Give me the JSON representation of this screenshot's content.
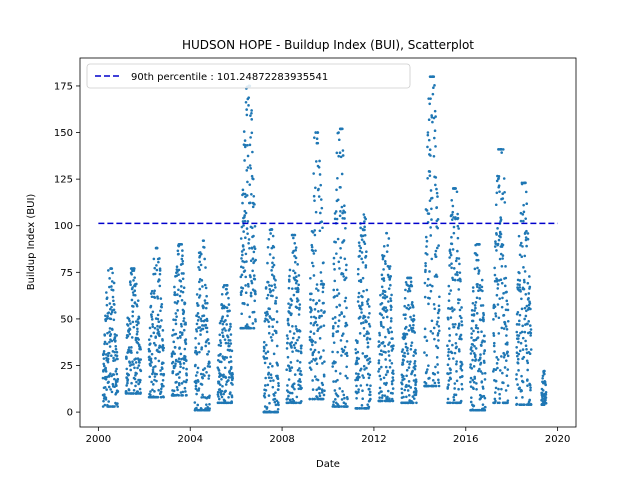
{
  "chart_data": {
    "type": "scatter",
    "title": "HUDSON HOPE - Buildup Index (BUI), Scatterplot",
    "xlabel": "Date",
    "ylabel": "Buildup Index (BUI)",
    "xlim": [
      1999.2,
      2020.8
    ],
    "ylim": [
      -8,
      190
    ],
    "xticks": [
      2000,
      2004,
      2008,
      2012,
      2016,
      2020
    ],
    "xtick_labels": [
      "2000",
      "2004",
      "2008",
      "2012",
      "2016",
      "2020"
    ],
    "yticks": [
      0,
      25,
      50,
      75,
      100,
      125,
      150,
      175
    ],
    "ytick_labels": [
      "0",
      "25",
      "50",
      "75",
      "100",
      "125",
      "150",
      "175"
    ],
    "point_color": "#1f77b4",
    "line_color": "#0000cc",
    "legend": {
      "placement": "top-left",
      "entries": [
        "90th percentile : 101.24872283935541"
      ]
    },
    "reference_line": {
      "name": "90th percentile : 101.24872283935541",
      "y": 101.24872283935541,
      "x_range": [
        2000.0,
        2020.0
      ],
      "style": "dashed"
    },
    "seasons": [
      {
        "year": 2000,
        "start": 2000.2,
        "end": 2000.85,
        "min": 3,
        "max": 77
      },
      {
        "year": 2001,
        "start": 2001.2,
        "end": 2001.85,
        "min": 10,
        "max": 77
      },
      {
        "year": 2002,
        "start": 2002.2,
        "end": 2002.85,
        "min": 8,
        "max": 88
      },
      {
        "year": 2003,
        "start": 2003.2,
        "end": 2003.85,
        "min": 9,
        "max": 90
      },
      {
        "year": 2004,
        "start": 2004.2,
        "end": 2004.85,
        "min": 1,
        "max": 92
      },
      {
        "year": 2005,
        "start": 2005.2,
        "end": 2005.85,
        "min": 5,
        "max": 68
      },
      {
        "year": 2006,
        "start": 2006.2,
        "end": 2006.85,
        "min": 45,
        "max": 175
      },
      {
        "year": 2007,
        "start": 2007.2,
        "end": 2007.85,
        "min": 0,
        "max": 98
      },
      {
        "year": 2008,
        "start": 2008.2,
        "end": 2008.85,
        "min": 5,
        "max": 95
      },
      {
        "year": 2009,
        "start": 2009.2,
        "end": 2009.85,
        "min": 7,
        "max": 150
      },
      {
        "year": 2010,
        "start": 2010.2,
        "end": 2010.85,
        "min": 3,
        "max": 152
      },
      {
        "year": 2011,
        "start": 2011.2,
        "end": 2011.85,
        "min": 2,
        "max": 106
      },
      {
        "year": 2012,
        "start": 2012.2,
        "end": 2012.85,
        "min": 6,
        "max": 96
      },
      {
        "year": 2013,
        "start": 2013.2,
        "end": 2013.85,
        "min": 5,
        "max": 72
      },
      {
        "year": 2014,
        "start": 2014.2,
        "end": 2014.85,
        "min": 14,
        "max": 180
      },
      {
        "year": 2015,
        "start": 2015.2,
        "end": 2015.85,
        "min": 5,
        "max": 120
      },
      {
        "year": 2016,
        "start": 2016.2,
        "end": 2016.85,
        "min": 1,
        "max": 90
      },
      {
        "year": 2017,
        "start": 2017.2,
        "end": 2017.85,
        "min": 5,
        "max": 141
      },
      {
        "year": 2018,
        "start": 2018.2,
        "end": 2018.85,
        "min": 4,
        "max": 123
      },
      {
        "year": 2019,
        "start": 2019.3,
        "end": 2019.5,
        "min": 4,
        "max": 22
      }
    ]
  }
}
